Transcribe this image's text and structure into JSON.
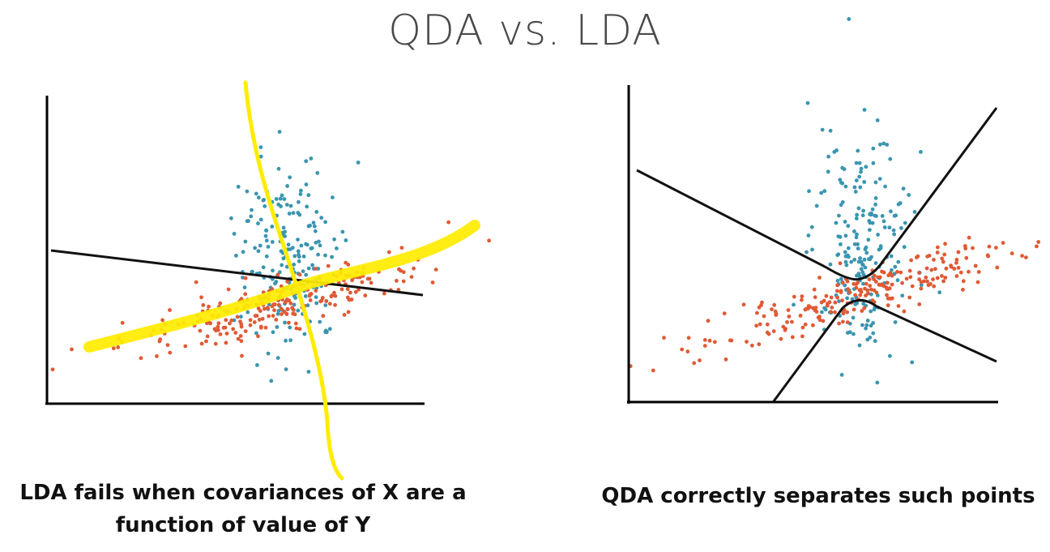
{
  "title": "QDA vs. LDA",
  "panels": [
    {
      "id": "lda",
      "caption": "LDA fails when covariances of X are a function of value of Y"
    },
    {
      "id": "qda",
      "caption": "QDA correctly separates such points"
    }
  ],
  "colors": {
    "class_a": "#3a95b0",
    "class_b": "#e05a35",
    "axis": "#000000",
    "boundary": "#111111",
    "highlight": "#ffec00",
    "title": "#4a4a4a"
  }
}
